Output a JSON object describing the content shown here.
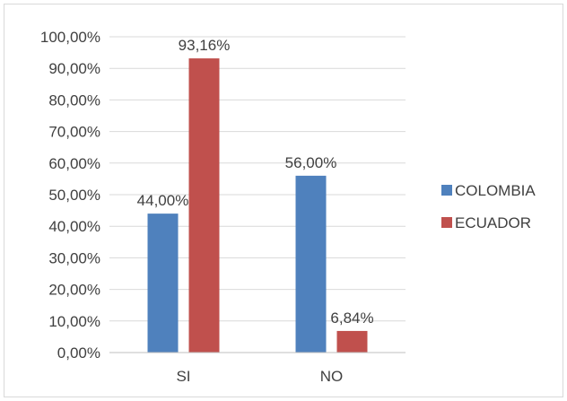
{
  "chart_data": {
    "type": "bar",
    "categories": [
      "SI",
      "NO"
    ],
    "series": [
      {
        "name": "COLOMBIA",
        "values": [
          44.0,
          56.0
        ],
        "labels": [
          "44,00%",
          "56,00%"
        ],
        "color": "#4f81bd"
      },
      {
        "name": "ECUADOR",
        "values": [
          93.16,
          6.84
        ],
        "labels": [
          "93,16%",
          "6,84%"
        ],
        "color": "#c0504d"
      }
    ],
    "ylim": [
      0,
      100
    ],
    "yticks": [
      {
        "value": 0,
        "label": "0,00%"
      },
      {
        "value": 10,
        "label": "10,00%"
      },
      {
        "value": 20,
        "label": "20,00%"
      },
      {
        "value": 30,
        "label": "30,00%"
      },
      {
        "value": 40,
        "label": "40,00%"
      },
      {
        "value": 50,
        "label": "50,00%"
      },
      {
        "value": 60,
        "label": "60,00%"
      },
      {
        "value": 70,
        "label": "70,00%"
      },
      {
        "value": 80,
        "label": "80,00%"
      },
      {
        "value": 90,
        "label": "90,00%"
      },
      {
        "value": 100,
        "label": "100,00%"
      }
    ],
    "grid": true,
    "legend_position": "right",
    "gridline_color": "#d9d9d9",
    "axis_color": "#bfbfbf"
  }
}
